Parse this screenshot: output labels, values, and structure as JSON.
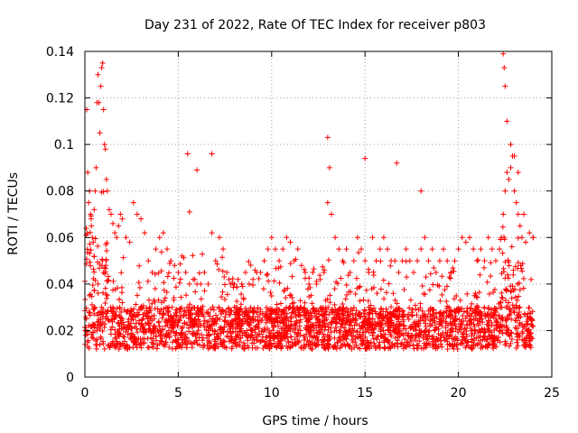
{
  "chart_data": {
    "type": "scatter",
    "title": "Day 231 of 2022, Rate Of TEC Index for receiver p803",
    "xlabel": "GPS time / hours",
    "ylabel": "ROTI / TECUs",
    "xlim": [
      0,
      25
    ],
    "ylim": [
      0,
      0.14
    ],
    "x_ticks": [
      0,
      5,
      10,
      15,
      20,
      25
    ],
    "x_tick_labels": [
      "0",
      "5",
      "10",
      "15",
      "20",
      "25"
    ],
    "y_ticks": [
      0,
      0.02,
      0.04,
      0.06,
      0.08,
      0.1,
      0.12,
      0.14
    ],
    "y_tick_labels": [
      "0",
      "0.02",
      "0.04",
      "0.06",
      "0.08",
      "0.1",
      "0.12",
      "0.14"
    ],
    "grid": true,
    "marker": "+",
    "color": "#ff0000",
    "series": [
      {
        "x": [
          0.05,
          0.1,
          0.15,
          0.2,
          0.25,
          0.3,
          0.35,
          0.4,
          0.45,
          0.5,
          0.55,
          0.6,
          0.65,
          0.7,
          0.75,
          0.8,
          0.85,
          0.9,
          0.95,
          1.0,
          1.05,
          1.1,
          1.15,
          1.2,
          1.3,
          1.4,
          1.5,
          1.6,
          1.7,
          1.8,
          1.9,
          2.0,
          2.2,
          2.4,
          2.6,
          2.8,
          3.0,
          3.2,
          3.4,
          3.6,
          3.8,
          4.0,
          4.2,
          4.4,
          4.6,
          4.8,
          5.0,
          5.2,
          5.4,
          5.6,
          5.8,
          6.0,
          6.2,
          6.4,
          6.6,
          6.8,
          7.0,
          7.2,
          7.4,
          7.6,
          7.8,
          8.0,
          8.2,
          8.4,
          8.6,
          8.8,
          9.0,
          9.2,
          9.4,
          9.6,
          9.8,
          10.0,
          10.2,
          10.4,
          10.6,
          10.8,
          11.0,
          11.2,
          11.4,
          11.6,
          11.8,
          12.0,
          12.2,
          12.4,
          12.6,
          12.8,
          13.0,
          13.2,
          13.4,
          13.6,
          13.8,
          14.0,
          14.2,
          14.4,
          14.6,
          14.8,
          15.0,
          15.2,
          15.4,
          15.6,
          15.8,
          16.0,
          16.2,
          16.4,
          16.6,
          16.8,
          17.0,
          17.2,
          17.4,
          17.6,
          17.8,
          18.0,
          18.2,
          18.4,
          18.6,
          18.8,
          19.0,
          19.2,
          19.4,
          19.6,
          19.8,
          20.0,
          20.2,
          20.4,
          20.6,
          20.8,
          21.0,
          21.2,
          21.4,
          21.6,
          21.8,
          22.0,
          22.2,
          22.3,
          22.4,
          22.5,
          22.6,
          22.7,
          22.8,
          22.9,
          23.0,
          23.1,
          23.2,
          23.3,
          23.4,
          23.6,
          23.8,
          24.0,
          0.02,
          0.08,
          0.25,
          0.5,
          0.7,
          0.9,
          1.0,
          1.1,
          1.2,
          1.5,
          2.0,
          2.5,
          3.0,
          3.5,
          4.0,
          4.5,
          5.5,
          5.6,
          6.0,
          6.8,
          8.0,
          9.0,
          10.0,
          11.0,
          12.0,
          13.0,
          13.1,
          14.0,
          15.0,
          15.2,
          16.0,
          16.7,
          17.0,
          18.0,
          19.0,
          19.5,
          20.0,
          21.0,
          22.0,
          22.4,
          22.45,
          22.5,
          22.6,
          22.8,
          23.0,
          23.2,
          23.5,
          24.0
        ],
        "y": [
          0.018,
          0.115,
          0.088,
          0.075,
          0.08,
          0.07,
          0.065,
          0.06,
          0.058,
          0.072,
          0.08,
          0.09,
          0.118,
          0.13,
          0.118,
          0.105,
          0.125,
          0.133,
          0.135,
          0.115,
          0.1,
          0.098,
          0.085,
          0.08,
          0.072,
          0.07,
          0.066,
          0.062,
          0.06,
          0.065,
          0.07,
          0.068,
          0.06,
          0.058,
          0.075,
          0.07,
          0.068,
          0.062,
          0.05,
          0.045,
          0.055,
          0.06,
          0.062,
          0.055,
          0.05,
          0.048,
          0.045,
          0.052,
          0.045,
          0.04,
          0.042,
          0.04,
          0.04,
          0.045,
          0.04,
          0.062,
          0.05,
          0.06,
          0.055,
          0.045,
          0.04,
          0.04,
          0.042,
          0.04,
          0.045,
          0.04,
          0.042,
          0.045,
          0.045,
          0.05,
          0.055,
          0.06,
          0.055,
          0.05,
          0.055,
          0.06,
          0.058,
          0.05,
          0.055,
          0.048,
          0.045,
          0.04,
          0.045,
          0.04,
          0.042,
          0.045,
          0.075,
          0.07,
          0.06,
          0.055,
          0.05,
          0.055,
          0.045,
          0.05,
          0.06,
          0.055,
          0.05,
          0.045,
          0.06,
          0.05,
          0.055,
          0.06,
          0.055,
          0.05,
          0.05,
          0.045,
          0.05,
          0.055,
          0.05,
          0.045,
          0.05,
          0.055,
          0.06,
          0.05,
          0.055,
          0.045,
          0.05,
          0.055,
          0.05,
          0.045,
          0.05,
          0.055,
          0.06,
          0.058,
          0.06,
          0.055,
          0.05,
          0.055,
          0.05,
          0.06,
          0.055,
          0.05,
          0.055,
          0.06,
          0.07,
          0.08,
          0.088,
          0.085,
          0.09,
          0.095,
          0.08,
          0.075,
          0.07,
          0.065,
          0.06,
          0.058,
          0.062,
          0.06,
          0.02,
          0.025,
          0.035,
          0.03,
          0.04,
          0.03,
          0.045,
          0.028,
          0.035,
          0.03,
          0.032,
          0.028,
          0.03,
          0.025,
          0.028,
          0.03,
          0.096,
          0.071,
          0.089,
          0.096,
          0.03,
          0.025,
          0.028,
          0.03,
          0.025,
          0.103,
          0.09,
          0.025,
          0.094,
          0.03,
          0.025,
          0.092,
          0.028,
          0.08,
          0.025,
          0.03,
          0.028,
          0.03,
          0.025,
          0.139,
          0.133,
          0.125,
          0.11,
          0.1,
          0.095,
          0.088,
          0.07,
          0.06
        ]
      }
    ]
  }
}
